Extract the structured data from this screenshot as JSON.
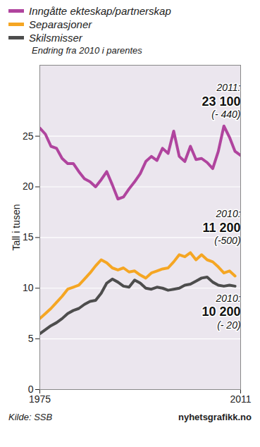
{
  "chart_data": {
    "type": "line",
    "subtitle": "Endring fra 2010 i parentes",
    "y_label": "Tall i tusen",
    "x": [
      1975,
      1976,
      1977,
      1978,
      1979,
      1980,
      1981,
      1982,
      1983,
      1984,
      1985,
      1986,
      1987,
      1988,
      1989,
      1990,
      1991,
      1992,
      1993,
      1994,
      1995,
      1996,
      1997,
      1998,
      1999,
      2000,
      2001,
      2002,
      2003,
      2004,
      2005,
      2006,
      2007,
      2008,
      2009,
      2010,
      2011
    ],
    "xlim": [
      1975,
      2011
    ],
    "xticks": [
      1975,
      2011
    ],
    "ylim": [
      0,
      32
    ],
    "yticks": [
      0,
      5,
      10,
      15,
      20,
      25
    ],
    "grid": true,
    "legend": "top",
    "series": [
      {
        "name": "Inngåtte ekteskap/partnerskap",
        "color": "#b0449e",
        "values": [
          25.8,
          25.2,
          24.0,
          23.8,
          22.8,
          22.3,
          22.3,
          21.5,
          20.8,
          20.5,
          20.0,
          20.7,
          21.5,
          20.2,
          18.8,
          19.0,
          19.8,
          20.5,
          21.3,
          22.5,
          23.0,
          22.6,
          23.8,
          23.3,
          25.5,
          23.0,
          22.5,
          24.0,
          22.7,
          22.8,
          22.4,
          21.8,
          23.5,
          26.0,
          24.9,
          23.5,
          23.1
        ]
      },
      {
        "name": "Separasjoner",
        "color": "#f5a623",
        "values": [
          7.0,
          7.5,
          8.0,
          8.6,
          9.2,
          9.9,
          10.1,
          10.3,
          10.9,
          11.5,
          12.2,
          12.8,
          12.5,
          12.0,
          11.8,
          12.0,
          11.6,
          11.7,
          11.3,
          11.0,
          11.5,
          11.7,
          11.9,
          12.0,
          12.6,
          13.3,
          13.1,
          13.5,
          12.8,
          13.3,
          12.8,
          12.6,
          12.1,
          11.5,
          11.7,
          11.2,
          null
        ]
      },
      {
        "name": "Skilsmisser",
        "color": "#4d4d4d",
        "values": [
          5.5,
          5.9,
          6.3,
          6.6,
          7.0,
          7.5,
          7.8,
          8.0,
          8.4,
          8.7,
          8.8,
          9.5,
          10.5,
          10.9,
          10.6,
          10.2,
          10.1,
          10.8,
          10.5,
          10.0,
          9.9,
          10.1,
          10.0,
          9.8,
          9.9,
          10.0,
          10.3,
          10.4,
          10.7,
          11.0,
          11.1,
          10.6,
          10.3,
          10.2,
          10.3,
          10.2,
          null
        ]
      }
    ],
    "annotations": [
      {
        "series": "Inngåtte ekteskap/partnerskap",
        "x": 2011,
        "x_label": "2011:",
        "value": 23.1,
        "label": "23 100",
        "change_label": "(- 440)"
      },
      {
        "series": "Separasjoner",
        "x": 2010,
        "x_label": "2010:",
        "value": 11.2,
        "label": "11 200",
        "change_label": "(-500)"
      },
      {
        "series": "Skilsmisser",
        "x": 2010,
        "x_label": "2010:",
        "value": 10.2,
        "label": "10 200",
        "change_label": "(- 20)"
      }
    ],
    "source": "Kilde: SSB",
    "credit": "nyhetsgrafikk.no"
  }
}
